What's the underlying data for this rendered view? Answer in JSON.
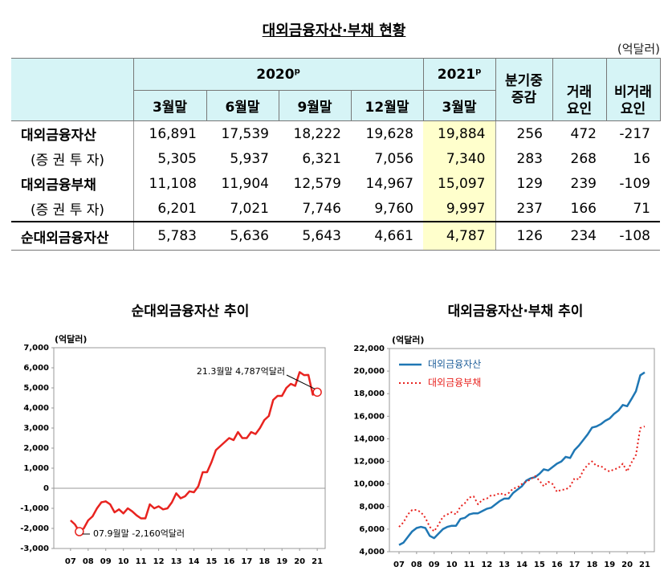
{
  "title": "대외금융자산·부채 현황",
  "unit": "(억달러)",
  "table": {
    "groups": [
      {
        "label": "2020",
        "sup": "p"
      },
      {
        "label": "2021",
        "sup": "p"
      }
    ],
    "columns": [
      "3월말",
      "6월말",
      "9월말",
      "12월말",
      "3월말"
    ],
    "change": "분기중 증감",
    "factors": [
      "거래 요인",
      "비거래 요인"
    ],
    "rows": [
      {
        "label": "대외금융자산",
        "cells": [
          "16,891",
          "17,539",
          "18,222",
          "19,628",
          "19,884",
          "256",
          "472",
          "-217"
        ]
      },
      {
        "label": "(증 권 투 자)",
        "cells": [
          "5,305",
          "5,937",
          "6,321",
          "7,056",
          "7,340",
          "283",
          "268",
          "16"
        ]
      },
      {
        "label": "대외금융부채",
        "cells": [
          "11,108",
          "11,904",
          "12,579",
          "14,967",
          "15,097",
          "129",
          "239",
          "-109"
        ]
      },
      {
        "label": "(증 권 투 자)",
        "cells": [
          "6,201",
          "7,021",
          "7,746",
          "9,760",
          "9,997",
          "237",
          "166",
          "71"
        ]
      },
      {
        "label": "순대외금융자산",
        "cells": [
          "5,783",
          "5,636",
          "5,643",
          "4,661",
          "4,787",
          "126",
          "234",
          "-108"
        ]
      }
    ]
  },
  "chart_data": [
    {
      "type": "line",
      "title": "순대외금융자산 추이",
      "y_label": "(억달러)",
      "x": [
        7,
        7.25,
        7.5,
        7.75,
        8,
        8.25,
        8.5,
        8.75,
        9,
        9.25,
        9.5,
        9.75,
        10,
        10.25,
        10.5,
        10.75,
        11,
        11.25,
        11.5,
        11.75,
        12,
        12.25,
        12.5,
        12.75,
        13,
        13.25,
        13.5,
        13.75,
        14,
        14.25,
        14.5,
        14.75,
        15,
        15.25,
        15.5,
        15.75,
        16,
        16.25,
        16.5,
        16.75,
        17,
        17.25,
        17.5,
        17.75,
        18,
        18.25,
        18.5,
        18.75,
        19,
        19.25,
        19.5,
        19.75,
        20,
        20.25,
        20.5,
        20.75,
        21
      ],
      "series": [
        {
          "color": "#e8231f",
          "values": [
            -1600,
            -1800,
            -2160,
            -2000,
            -1600,
            -1400,
            -1000,
            -700,
            -650,
            -800,
            -1200,
            -1050,
            -1250,
            -1000,
            -1150,
            -1350,
            -1500,
            -1500,
            -800,
            -1000,
            -900,
            -1050,
            -1000,
            -700,
            -250,
            -500,
            -400,
            -150,
            -200,
            100,
            800,
            800,
            1300,
            1900,
            2100,
            2300,
            2500,
            2400,
            2800,
            2500,
            2500,
            2800,
            2700,
            3000,
            3400,
            3600,
            4400,
            4600,
            4600,
            5000,
            5200,
            5100,
            5783,
            5636,
            5643,
            4661,
            4787
          ]
        }
      ],
      "annotations": [
        "07.9월말 -2,160억달러",
        "21.3월말 4,787억달러"
      ],
      "xlim": [
        6.05,
        21.45
      ],
      "xticks": [
        {
          "value": 7,
          "label": "07"
        },
        {
          "value": 8,
          "label": "08"
        },
        {
          "value": 9,
          "label": "09"
        },
        10,
        11,
        12,
        13,
        14,
        15,
        16,
        17,
        18,
        19,
        20,
        21
      ],
      "ylim": [
        -3000,
        7000
      ],
      "yticks": [
        {
          "value": -3000,
          "label": "-3,000"
        },
        {
          "value": -2000,
          "label": "-2,000"
        },
        {
          "value": -1000,
          "label": "-1,000"
        },
        0,
        {
          "value": 1000,
          "label": "1,000"
        },
        {
          "value": 2000,
          "label": "2,000"
        },
        {
          "value": 3000,
          "label": "3,000"
        },
        {
          "value": 4000,
          "label": "4,000"
        },
        {
          "value": 5000,
          "label": "5,000"
        },
        {
          "value": 6000,
          "label": "6,000"
        },
        {
          "value": 7000,
          "label": "7,000"
        }
      ],
      "zero_line": true
    },
    {
      "type": "line",
      "title": "대외금융자산·부채 추이",
      "y_label": "(억달러)",
      "x": [
        7,
        7.25,
        7.5,
        7.75,
        8,
        8.25,
        8.5,
        8.75,
        9,
        9.25,
        9.5,
        9.75,
        10,
        10.25,
        10.5,
        10.75,
        11,
        11.25,
        11.5,
        11.75,
        12,
        12.25,
        12.5,
        12.75,
        13,
        13.25,
        13.5,
        13.75,
        14,
        14.25,
        14.5,
        14.75,
        15,
        15.25,
        15.5,
        15.75,
        16,
        16.25,
        16.5,
        16.75,
        17,
        17.25,
        17.5,
        17.75,
        18,
        18.25,
        18.5,
        18.75,
        19,
        19.25,
        19.5,
        19.75,
        20,
        20.25,
        20.5,
        20.75,
        21
      ],
      "series": [
        {
          "name": "대외금융자산",
          "color": "#1f77b4",
          "dash": false,
          "values": [
            4600,
            4800,
            5300,
            5800,
            6100,
            6200,
            6100,
            5400,
            5200,
            5600,
            6000,
            6200,
            6300,
            6300,
            6900,
            7000,
            7300,
            7400,
            7400,
            7600,
            7800,
            7900,
            8200,
            8500,
            8700,
            8700,
            9200,
            9500,
            9800,
            10300,
            10500,
            10600,
            10900,
            11300,
            11200,
            11500,
            11800,
            12000,
            12400,
            12300,
            13000,
            13400,
            13900,
            14400,
            15000,
            15100,
            15300,
            15600,
            15800,
            16200,
            16500,
            17000,
            16891,
            17539,
            18222,
            19628,
            19884
          ]
        },
        {
          "name": "대외금융부채",
          "color": "#e8231f",
          "dash": true,
          "values": [
            6200,
            6600,
            7300,
            7700,
            7700,
            7500,
            7000,
            6200,
            5800,
            6400,
            7100,
            7300,
            7500,
            7300,
            8000,
            8300,
            8800,
            8900,
            8200,
            8600,
            8700,
            9000,
            9000,
            9200,
            9000,
            9200,
            9600,
            9700,
            10000,
            10200,
            10400,
            10700,
            10300,
            9800,
            10200,
            10000,
            9300,
            9500,
            9500,
            9800,
            10500,
            10400,
            11200,
            11700,
            12000,
            11600,
            11600,
            11300,
            11100,
            11300,
            11400,
            11800,
            11108,
            11904,
            12579,
            14967,
            15097
          ]
        }
      ],
      "legend": "upper left",
      "xlim": [
        6.45,
        21.55
      ],
      "xticks": [
        {
          "value": 7,
          "label": "07"
        },
        {
          "value": 8,
          "label": "08"
        },
        {
          "value": 9,
          "label": "09"
        },
        10,
        11,
        12,
        13,
        14,
        15,
        16,
        17,
        18,
        19,
        20,
        21
      ],
      "ylim": [
        4000,
        22000
      ],
      "yticks": [
        {
          "value": 4000,
          "label": "4,000"
        },
        {
          "value": 6000,
          "label": "6,000"
        },
        {
          "value": 8000,
          "label": "8,000"
        },
        {
          "value": 10000,
          "label": "10,000"
        },
        {
          "value": 12000,
          "label": "12,000"
        },
        {
          "value": 14000,
          "label": "14,000"
        },
        {
          "value": 16000,
          "label": "16,000"
        },
        {
          "value": 18000,
          "label": "18,000"
        },
        {
          "value": 20000,
          "label": "20,000"
        },
        {
          "value": 22000,
          "label": "22,000"
        }
      ]
    }
  ]
}
